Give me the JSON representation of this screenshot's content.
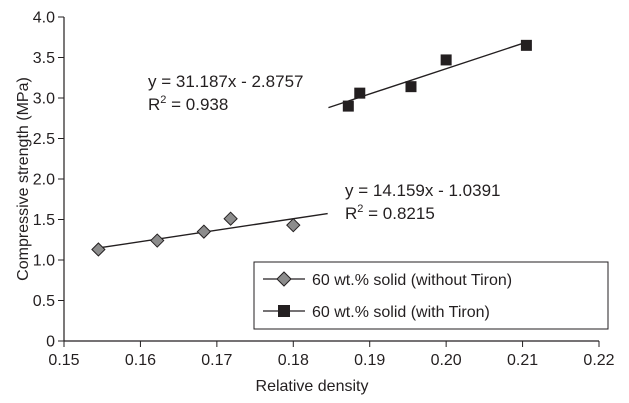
{
  "chart_data": {
    "type": "scatter",
    "xlabel": "Relative density",
    "ylabel": "Compressive strength (MPa)",
    "xlim": [
      0.15,
      0.22
    ],
    "ylim": [
      0,
      4.0
    ],
    "xticks": [
      "0.15",
      "0.16",
      "0.17",
      "0.18",
      "0.19",
      "0.20",
      "0.21",
      "0.22"
    ],
    "yticks": [
      "0",
      "0.5",
      "1.0",
      "1.5",
      "2.0",
      "2.5",
      "3.0",
      "3.5",
      "4.0"
    ],
    "grid": false,
    "legend_position": "bottom-right",
    "series": [
      {
        "name": "60 wt.% solid (without Tiron)",
        "marker": "diamond",
        "marker_color": "#8c8c8c",
        "x": [
          0.1545,
          0.1622,
          0.1683,
          0.1718,
          0.18
        ],
        "y": [
          1.13,
          1.24,
          1.35,
          1.51,
          1.43
        ],
        "trendline": {
          "slope": 14.159,
          "intercept": -1.0391,
          "x_range": [
            0.1545,
            0.1845
          ],
          "equation": "y = 14.159x - 1.0391",
          "r2_prefix": "R",
          "r2_exp": "2",
          "r2_value": " = 0.8215"
        }
      },
      {
        "name": "60 wt.% solid (with Tiron)",
        "marker": "square",
        "marker_color": "#231f20",
        "x": [
          0.1872,
          0.1887,
          0.1954,
          0.2,
          0.2105
        ],
        "y": [
          2.9,
          3.06,
          3.14,
          3.47,
          3.65
        ],
        "trendline": {
          "slope": 31.187,
          "intercept": -2.8757,
          "x_range": [
            0.1846,
            0.2105
          ],
          "equation": "y = 31.187x - 2.8757",
          "r2_prefix": "R",
          "r2_exp": "2",
          "r2_value": " = 0.938"
        }
      }
    ]
  }
}
